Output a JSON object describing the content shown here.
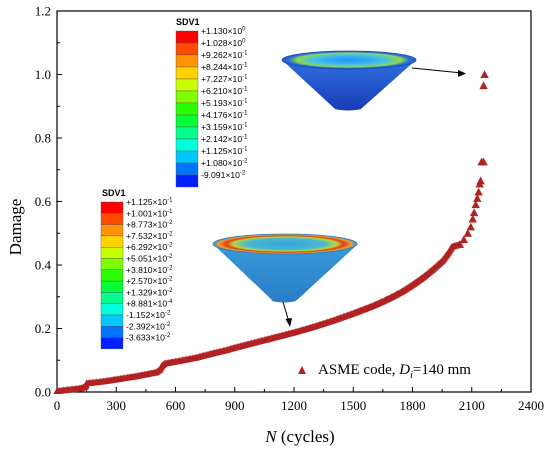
{
  "chart_data": {
    "type": "scatter",
    "xlabel_italic": "N",
    "xlabel_rest": " (cycles)",
    "ylabel": "Damage",
    "xlim": [
      0,
      2400
    ],
    "ylim": [
      0,
      1.2
    ],
    "xticks": [
      0,
      300,
      600,
      900,
      1200,
      1500,
      1800,
      2100,
      2400
    ],
    "xtick_labels": [
      "0",
      "300",
      "600",
      "900",
      "1200",
      "1500",
      "1800",
      "2100",
      "2400"
    ],
    "yticks": [
      0,
      0.2,
      0.4,
      0.6,
      0.8,
      1.0,
      1.2
    ],
    "ytick_labels": [
      "0.0",
      "0.2",
      "0.4",
      "0.6",
      "0.8",
      "1.0",
      "1.2"
    ],
    "grid": false,
    "legend_position": "bottom-right",
    "series": [
      {
        "name_prefix": "ASME code, ",
        "name_italic": "D",
        "name_sub": "i",
        "name_suffix": "=140 mm",
        "color": "#b22222",
        "marker": "triangle",
        "points": [
          [
            0,
            0.003
          ],
          [
            40,
            0.006
          ],
          [
            80,
            0.009
          ],
          [
            120,
            0.012
          ],
          [
            145,
            0.018
          ],
          [
            150,
            0.028
          ],
          [
            200,
            0.031
          ],
          [
            250,
            0.035
          ],
          [
            300,
            0.04
          ],
          [
            350,
            0.045
          ],
          [
            400,
            0.05
          ],
          [
            450,
            0.056
          ],
          [
            500,
            0.062
          ],
          [
            520,
            0.07
          ],
          [
            530,
            0.082
          ],
          [
            545,
            0.09
          ],
          [
            600,
            0.096
          ],
          [
            650,
            0.102
          ],
          [
            700,
            0.108
          ],
          [
            750,
            0.116
          ],
          [
            800,
            0.124
          ],
          [
            850,
            0.131
          ],
          [
            900,
            0.14
          ],
          [
            950,
            0.148
          ],
          [
            1000,
            0.156
          ],
          [
            1050,
            0.164
          ],
          [
            1100,
            0.172
          ],
          [
            1150,
            0.18
          ],
          [
            1200,
            0.188
          ],
          [
            1250,
            0.197
          ],
          [
            1300,
            0.206
          ],
          [
            1350,
            0.216
          ],
          [
            1400,
            0.226
          ],
          [
            1450,
            0.237
          ],
          [
            1500,
            0.248
          ],
          [
            1550,
            0.26
          ],
          [
            1600,
            0.272
          ],
          [
            1650,
            0.286
          ],
          [
            1700,
            0.301
          ],
          [
            1750,
            0.318
          ],
          [
            1800,
            0.338
          ],
          [
            1850,
            0.36
          ],
          [
            1900,
            0.385
          ],
          [
            1950,
            0.413
          ],
          [
            1980,
            0.438
          ],
          [
            2000,
            0.458
          ],
          [
            2040,
            0.465
          ],
          [
            2060,
            0.48
          ],
          [
            2080,
            0.5
          ],
          [
            2095,
            0.52
          ],
          [
            2105,
            0.545
          ],
          [
            2112,
            0.565
          ],
          [
            2120,
            0.59
          ],
          [
            2128,
            0.61
          ],
          [
            2135,
            0.63
          ],
          [
            2140,
            0.655
          ],
          [
            2145,
            0.665
          ],
          [
            2150,
            0.725
          ],
          [
            2160,
            0.725
          ],
          [
            2160,
            0.965
          ],
          [
            2165,
            1.0
          ]
        ]
      }
    ],
    "colorbars": [
      {
        "title": "SDV1",
        "colors": [
          "#ff0000",
          "#ff4a00",
          "#ff9400",
          "#ffd300",
          "#c8ff00",
          "#7dff00",
          "#2aff00",
          "#00ff36",
          "#00ff8c",
          "#00ffdf",
          "#00c8ff",
          "#0073ff",
          "#0020ff"
        ],
        "label_mantissas": [
          "+1.130",
          "+1.028",
          "+9.262",
          "+8.244",
          "+7.227",
          "+6.210",
          "+5.193",
          "+4.176",
          "+3.159",
          "+2.142",
          "+1.125",
          "+1.080",
          "-9.091"
        ],
        "label_exponents": [
          "0",
          "0",
          "-1",
          "-1",
          "-1",
          "-1",
          "-1",
          "-1",
          "-1",
          "-1",
          "-1",
          "-2",
          "-2"
        ]
      },
      {
        "title": "SDV1",
        "colors": [
          "#ff0000",
          "#ff4a00",
          "#ff9400",
          "#ffd300",
          "#c8ff00",
          "#7dff00",
          "#2aff00",
          "#00ff36",
          "#00ff8c",
          "#00ffdf",
          "#00c8ff",
          "#0073ff",
          "#0020ff"
        ],
        "label_mantissas": [
          "+1.125",
          "+1.001",
          "+8.773",
          "+7.532",
          "+6.292",
          "+5.051",
          "+3.810",
          "+2.570",
          "+1.329",
          "+8.881",
          "-1.152",
          "-2.392",
          "-3.633"
        ],
        "label_exponents": [
          "-1",
          "-1",
          "-2",
          "-2",
          "-2",
          "-2",
          "-2",
          "-2",
          "-2",
          "-4",
          "-2",
          "-2",
          "-2"
        ]
      }
    ]
  }
}
